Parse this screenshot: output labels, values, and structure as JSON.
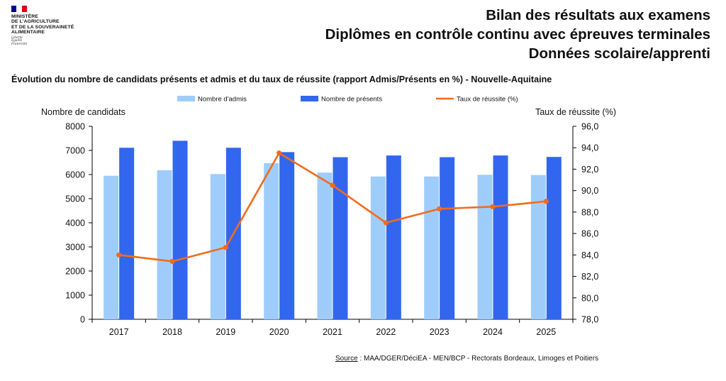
{
  "logo": {
    "ministry_lines": [
      "MINISTÈRE",
      "DE L'AGRICULTURE",
      "ET DE LA SOUVERAINETÉ",
      "ALIMENTAIRE"
    ],
    "motto_lines": [
      "Liberté",
      "Égalité",
      "Fraternité"
    ],
    "colors": [
      "#000091",
      "#ffffff",
      "#e1000f"
    ]
  },
  "header": {
    "line1": "Bilan des résultats aux examens",
    "line2": "Diplômes en contrôle continu avec épreuves terminales",
    "line3": "Données scolaire/apprenti"
  },
  "chart_title": "Évolution du nombre de candidats présents et admis et du taux de réussite (rapport Admis/Présents en %) - Nouvelle-Aquitaine",
  "source": {
    "label": "Source",
    "text": " : MAA/DGER/DéciEA - MEN/BCP - Rectorats Bordeaux, Limoges et Poitiers"
  },
  "chart_data": {
    "type": "bar",
    "categories": [
      "2017",
      "2018",
      "2019",
      "2020",
      "2021",
      "2022",
      "2023",
      "2024",
      "2025"
    ],
    "series": [
      {
        "name": "Nombre d'admis",
        "kind": "bar",
        "axis": "left",
        "color": "#9fcdfb",
        "values": [
          5950,
          6180,
          6020,
          6470,
          6080,
          5920,
          5920,
          5990,
          5980
        ]
      },
      {
        "name": "Nombre de présents",
        "kind": "bar",
        "axis": "left",
        "color": "#3366ee",
        "values": [
          7110,
          7400,
          7110,
          6930,
          6720,
          6790,
          6720,
          6790,
          6730
        ]
      },
      {
        "name": "Taux de réussite (%)",
        "kind": "line",
        "axis": "right",
        "color": "#f26b1d",
        "values": [
          84.0,
          83.4,
          84.7,
          93.5,
          90.5,
          87.0,
          88.3,
          88.5,
          89.0
        ]
      }
    ],
    "ylabel_left": "Nombre de candidats",
    "ylabel_right": "Taux de réussite (%)",
    "ylim_left": [
      0,
      8000
    ],
    "yticks_left": [
      "0",
      "1000",
      "2000",
      "3000",
      "4000",
      "5000",
      "6000",
      "7000",
      "8000"
    ],
    "ylim_right": [
      78,
      96
    ],
    "yticks_right": [
      "78,0",
      "80,0",
      "82,0",
      "84,0",
      "86,0",
      "88,0",
      "90,0",
      "92,0",
      "94,0",
      "96,0"
    ],
    "legend_position": "top",
    "grid": false
  }
}
